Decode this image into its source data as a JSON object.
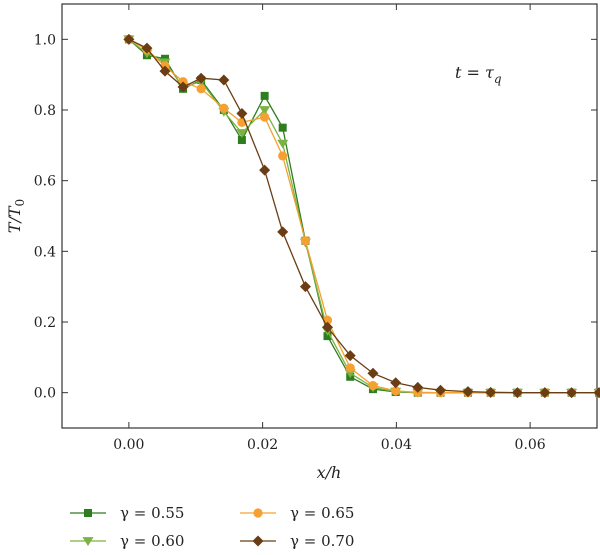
{
  "chart_data": {
    "type": "line",
    "xlabel": "x/h",
    "ylabel_main": "T/T",
    "ylabel_sub": "0",
    "annotation": {
      "lhs": "t = τ",
      "sub": "q"
    },
    "xlim": [
      -0.01,
      0.07
    ],
    "ylim": [
      -0.1,
      1.1
    ],
    "xticks": [
      0.0,
      0.02,
      0.04,
      0.06
    ],
    "xtick_labels": [
      "0.00",
      "0.02",
      "0.04",
      "0.06"
    ],
    "yticks": [
      0.0,
      0.2,
      0.4,
      0.6,
      0.8,
      1.0
    ],
    "ytick_labels": [
      "0.0",
      "0.2",
      "0.4",
      "0.6",
      "0.8",
      "1.0"
    ],
    "grid": false,
    "legend_position": "bottom",
    "x": [
      0.0,
      0.0027,
      0.0054,
      0.0081,
      0.0108,
      0.0142,
      0.0169,
      0.0203,
      0.023,
      0.0264,
      0.0297,
      0.0331,
      0.0365,
      0.0399,
      0.0432,
      0.0466,
      0.0507,
      0.0541,
      0.0581,
      0.0622,
      0.0662,
      0.0703
    ],
    "series": [
      {
        "name": "γ = 0.55",
        "color": "#2e7d1f",
        "marker": "square",
        "values": [
          1.0,
          0.955,
          0.945,
          0.86,
          0.885,
          0.8,
          0.715,
          0.84,
          0.75,
          0.43,
          0.16,
          0.045,
          0.01,
          0.002,
          0.0,
          0.0,
          0.0,
          0.0,
          0.0,
          0.0,
          0.0,
          0.0
        ]
      },
      {
        "name": "γ = 0.60",
        "color": "#7bb342",
        "marker": "triangle-down",
        "values": [
          1.0,
          0.96,
          0.935,
          0.865,
          0.88,
          0.795,
          0.735,
          0.8,
          0.705,
          0.425,
          0.175,
          0.055,
          0.015,
          0.003,
          0.0,
          0.0,
          0.0,
          0.0,
          0.0,
          0.0,
          0.0,
          0.0
        ]
      },
      {
        "name": "γ = 0.65",
        "color": "#f5a031",
        "marker": "circle",
        "values": [
          1.0,
          0.97,
          0.925,
          0.88,
          0.86,
          0.805,
          0.765,
          0.78,
          0.67,
          0.43,
          0.205,
          0.07,
          0.02,
          0.005,
          0.001,
          0.0,
          0.0,
          0.0,
          0.0,
          0.0,
          0.0,
          0.0
        ]
      },
      {
        "name": "γ = 0.70",
        "color": "#6b3d14",
        "marker": "diamond",
        "values": [
          1.0,
          0.975,
          0.91,
          0.865,
          0.89,
          0.885,
          0.79,
          0.63,
          0.455,
          0.3,
          0.185,
          0.105,
          0.055,
          0.028,
          0.015,
          0.007,
          0.003,
          0.001,
          0.0,
          0.0,
          0.0,
          0.0
        ]
      }
    ]
  }
}
